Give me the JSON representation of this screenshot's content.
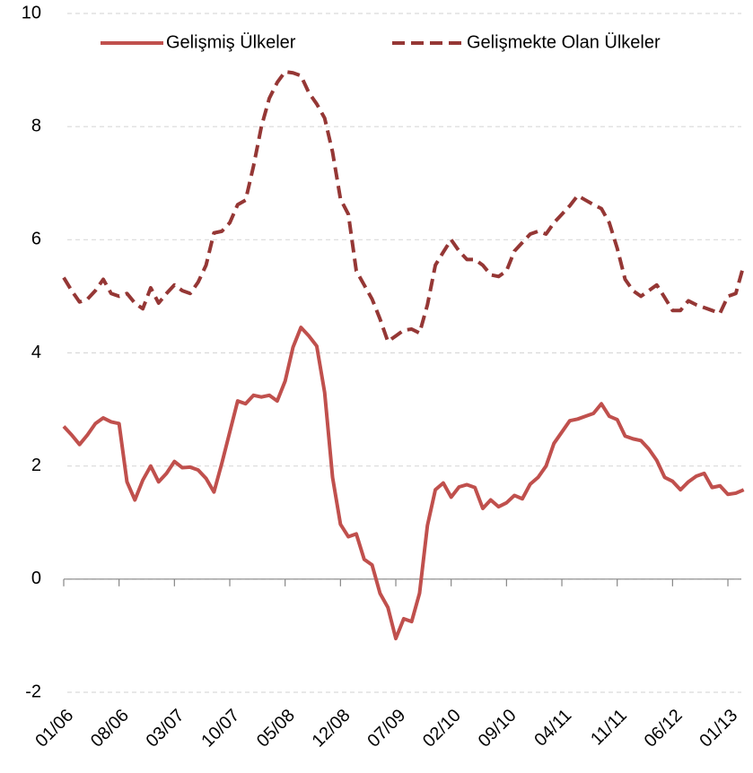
{
  "chart_data": {
    "type": "line",
    "categories": [
      "01/06",
      null,
      null,
      null,
      null,
      null,
      null,
      "08/06",
      null,
      null,
      null,
      null,
      null,
      null,
      "03/07",
      null,
      null,
      null,
      null,
      null,
      null,
      "10/07",
      null,
      null,
      null,
      null,
      null,
      null,
      "05/08",
      null,
      null,
      null,
      null,
      null,
      null,
      "12/08",
      null,
      null,
      null,
      null,
      null,
      null,
      "07/09",
      null,
      null,
      null,
      null,
      null,
      null,
      "02/10",
      null,
      null,
      null,
      null,
      null,
      null,
      "09/10",
      null,
      null,
      null,
      null,
      null,
      null,
      "04/11",
      null,
      null,
      null,
      null,
      null,
      null,
      "11/11",
      null,
      null,
      null,
      null,
      null,
      null,
      "06/12",
      null,
      null,
      null,
      null,
      null,
      null,
      "01/13",
      null,
      null
    ],
    "series": [
      {
        "name": "Gelişmiş Ülkeler",
        "color": "#c0504d",
        "line_style": "solid",
        "values": [
          2.7,
          2.55,
          2.38,
          2.55,
          2.75,
          2.85,
          2.78,
          2.75,
          1.72,
          1.4,
          1.75,
          2.0,
          1.72,
          1.87,
          2.08,
          1.97,
          1.98,
          1.93,
          1.78,
          1.54,
          2.05,
          2.6,
          3.15,
          3.1,
          3.25,
          3.22,
          3.25,
          3.15,
          3.5,
          4.1,
          4.45,
          4.3,
          4.12,
          3.3,
          1.8,
          0.97,
          0.75,
          0.8,
          0.35,
          0.25,
          -0.25,
          -0.5,
          -1.05,
          -0.7,
          -0.75,
          -0.25,
          0.95,
          1.58,
          1.7,
          1.45,
          1.63,
          1.67,
          1.62,
          1.25,
          1.4,
          1.28,
          1.35,
          1.48,
          1.42,
          1.68,
          1.8,
          2.0,
          2.4,
          2.6,
          2.8,
          2.83,
          2.88,
          2.93,
          3.1,
          2.88,
          2.82,
          2.53,
          2.48,
          2.45,
          2.3,
          2.1,
          1.8,
          1.73,
          1.58,
          1.72,
          1.82,
          1.87,
          1.62,
          1.65,
          1.5,
          1.52,
          1.58
        ]
      },
      {
        "name": "Gelişmekte Olan Ülkeler",
        "color": "#953735",
        "line_style": "dashed",
        "values": [
          5.33,
          5.1,
          4.9,
          4.95,
          5.1,
          5.3,
          5.05,
          5.0,
          5.05,
          4.88,
          4.78,
          5.15,
          4.88,
          5.05,
          5.2,
          5.1,
          5.05,
          5.25,
          5.55,
          6.12,
          6.15,
          6.3,
          6.62,
          6.7,
          7.3,
          8.0,
          8.5,
          8.78,
          8.97,
          8.95,
          8.9,
          8.6,
          8.4,
          8.15,
          7.55,
          6.72,
          6.45,
          5.45,
          5.2,
          4.95,
          4.6,
          4.2,
          4.3,
          4.4,
          4.42,
          4.35,
          4.85,
          5.55,
          5.78,
          6.0,
          5.8,
          5.65,
          5.65,
          5.55,
          5.38,
          5.35,
          5.45,
          5.8,
          5.95,
          6.1,
          6.15,
          6.1,
          6.3,
          6.45,
          6.6,
          6.78,
          6.7,
          6.62,
          6.55,
          6.3,
          5.85,
          5.3,
          5.1,
          5.0,
          5.1,
          5.2,
          4.98,
          4.75,
          4.75,
          4.92,
          4.85,
          4.8,
          4.75,
          4.7,
          5.0,
          5.05,
          5.55
        ]
      }
    ],
    "ylim": [
      -2,
      10
    ],
    "yticks": [
      -2,
      0,
      2,
      4,
      6,
      8,
      10
    ],
    "grid": true,
    "legend": "top"
  }
}
